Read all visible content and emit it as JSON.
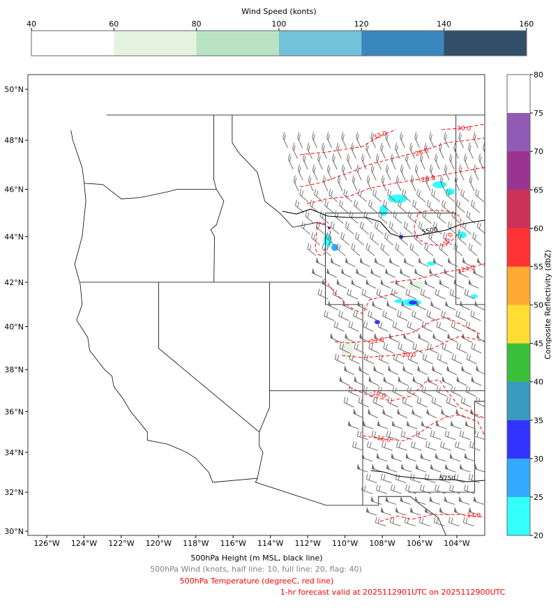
{
  "wind_colorbar": {
    "label": "Wind Speed (konts)",
    "ticks": [
      "40",
      "60",
      "80",
      "100",
      "120",
      "140",
      "160"
    ],
    "colors": [
      "#ffffff",
      "#e5f4e1",
      "#bae3c3",
      "#72c2d9",
      "#3a86bf",
      "#334e67"
    ]
  },
  "refl_colorbar": {
    "label": "Composite Reflectivity (dbZ)",
    "ticks": [
      "80",
      "75",
      "70",
      "65",
      "60",
      "55",
      "50",
      "45",
      "40",
      "35",
      "30",
      "25",
      "20"
    ],
    "colors": [
      "#ffffff",
      "#915bb5",
      "#993590",
      "#cc3358",
      "#ff3333",
      "#ffaa33",
      "#ffdd33",
      "#3abf3b",
      "#3a9ac0",
      "#3333ff",
      "#33aaff",
      "#33ffff"
    ]
  },
  "map": {
    "lon_ticks": [
      "126°W",
      "124°W",
      "122°W",
      "120°W",
      "118°W",
      "116°W",
      "114°W",
      "112°W",
      "110°W",
      "108°W",
      "106°W",
      "104°W"
    ],
    "lat_ticks": [
      "30°N",
      "32°N",
      "34°N",
      "36°N",
      "38°N",
      "40°N",
      "42°N",
      "44°N",
      "46°N",
      "48°N",
      "50°N"
    ],
    "height_labels": [
      "5500",
      "5750"
    ],
    "temp_labels": [
      "-32.0",
      "-30.0",
      "-28.0",
      "-26.0",
      "-26.0",
      "-24.0",
      "-22.0",
      "-20.0",
      "-18.0",
      "-16.0",
      "-14.0"
    ],
    "height_color": "#000000",
    "temp_color": "#ff0000",
    "barb_color": "#707070"
  },
  "notes": {
    "height": "500hPa Height (m MSL, black line)",
    "wind": "500hPa Wind (knots, half line: 10, full line: 20, flag: 40)",
    "temp": "500hPa Temperature (degreeC, red line)",
    "valid": "1-hr forecast valid at 2025112901UTC on 2025112900UTC"
  }
}
